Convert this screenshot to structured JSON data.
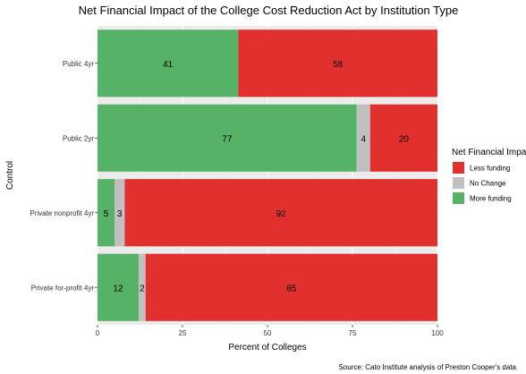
{
  "chart_data": {
    "type": "bar",
    "orientation": "horizontal",
    "stacked": true,
    "title": "Net Financial Impact of the College Cost Reduction Act by Institution Type",
    "xlabel": "Percent of Colleges",
    "ylabel": "Control",
    "xlim": [
      0,
      100
    ],
    "xticks": [
      "0",
      "25",
      "50",
      "75",
      "100"
    ],
    "categories": [
      "Public 4yr",
      "Public 2yr",
      "Private nonprofit 4yr",
      "Private for-profit 4yr"
    ],
    "series": [
      {
        "name": "More funding",
        "color": "#55b266",
        "values": [
          41,
          77,
          5,
          12
        ]
      },
      {
        "name": "No Change",
        "color": "#c0c0c0",
        "values": [
          0,
          4,
          3,
          2
        ]
      },
      {
        "name": "Less funding",
        "color": "#e2302f",
        "values": [
          58,
          20,
          92,
          85
        ]
      }
    ],
    "labels": [
      [
        "41",
        "",
        "58"
      ],
      [
        "77",
        "4",
        "20"
      ],
      [
        "5",
        "3",
        "92"
      ],
      [
        "12",
        "2",
        "85"
      ]
    ],
    "legend": {
      "title": "Net Financial Impa",
      "placement": "right",
      "items": [
        {
          "name": "Less funding",
          "color": "#e2302f"
        },
        {
          "name": "No Change",
          "color": "#c0c0c0"
        },
        {
          "name": "More funding",
          "color": "#55b266"
        }
      ]
    },
    "caption": "Source: Cato Institute analysis of Preston Cooper's data",
    "grid": true,
    "panel_background": "#ebebeb"
  }
}
